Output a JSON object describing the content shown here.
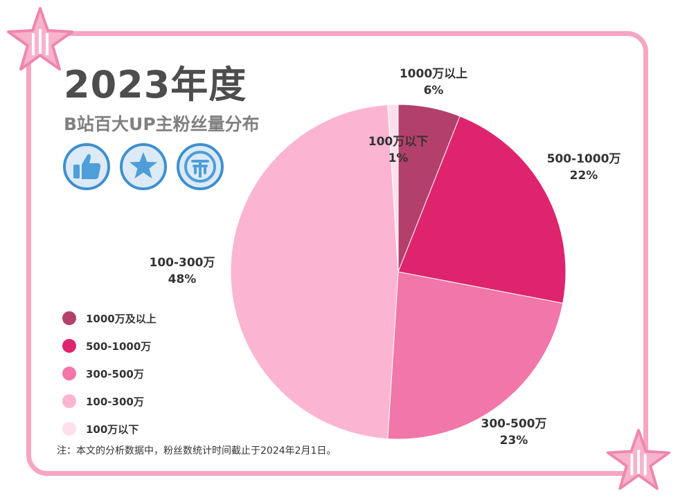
{
  "header": {
    "title": "2023年度",
    "subtitle": "B站百大UP主粉丝量分布"
  },
  "badges": [
    "thumbs-up-icon",
    "star-icon",
    "coin-icon"
  ],
  "colors": {
    "frame": "#f6a5c3",
    "badge_fill": "#4e9ed8",
    "badge_bg": "#dbeaf6"
  },
  "chart_data": {
    "type": "pie",
    "title": "",
    "slices": [
      {
        "label": "1000万以上",
        "pct_text": "6%",
        "value": 6,
        "color": "#b3406a"
      },
      {
        "label": "500-1000万",
        "pct_text": "22%",
        "value": 22,
        "color": "#de246e"
      },
      {
        "label": "300-500万",
        "pct_text": "23%",
        "value": 23,
        "color": "#f176a9"
      },
      {
        "label": "100-300万",
        "pct_text": "48%",
        "value": 48,
        "color": "#fbb5d2"
      },
      {
        "label": "100万以下",
        "pct_text": "1%",
        "value": 1,
        "color": "#fde0ec"
      }
    ],
    "legend_placement": "left",
    "legend": [
      {
        "label": "1000万及以上",
        "color": "#b3406a"
      },
      {
        "label": "500-1000万",
        "color": "#de246e"
      },
      {
        "label": "300-500万",
        "color": "#f176a9"
      },
      {
        "label": "100-300万",
        "color": "#fbb5d2"
      },
      {
        "label": "100万以下",
        "color": "#fde0ec"
      }
    ]
  },
  "footnote": "注：本文的分析数据中，粉丝数统计时间截止于2024年2月1日。"
}
